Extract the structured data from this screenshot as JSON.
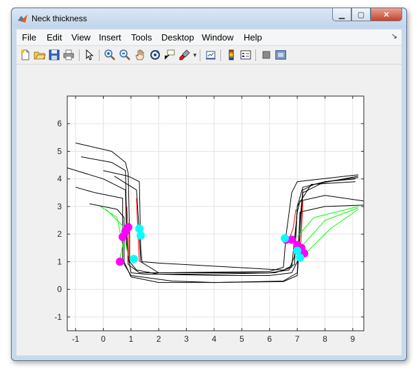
{
  "window": {
    "title": "Neck thickness"
  },
  "menu": {
    "items": [
      "File",
      "Edit",
      "View",
      "Insert",
      "Tools",
      "Desktop",
      "Window",
      "Help"
    ]
  },
  "toolbar": {
    "tools": [
      "new-figure",
      "open-file",
      "save",
      "print",
      "edit-plot",
      "zoom-in",
      "zoom-out",
      "pan",
      "rotate-3d",
      "data-cursor",
      "brush",
      "link-plot",
      "colorbar",
      "legend",
      "hide-plot-tools",
      "show-plot-tools"
    ]
  },
  "chart_data": {
    "type": "line",
    "title": "",
    "xlabel": "",
    "ylabel": "",
    "xlim": [
      -1.3,
      9.4
    ],
    "ylim": [
      -1.5,
      7
    ],
    "xticks": [
      -1,
      0,
      1,
      2,
      3,
      4,
      5,
      6,
      7,
      8,
      9
    ],
    "yticks": [
      -1,
      0,
      1,
      2,
      3,
      4,
      5,
      6
    ],
    "grid": true,
    "colors": {
      "black": "#000000",
      "red": "#ff0000",
      "green": "#00ff00",
      "magenta": "#ff00ff",
      "cyan": "#00ffff"
    },
    "series": [
      {
        "color": "black",
        "points": [
          [
            -1.0,
            5.3
          ],
          [
            0.3,
            5.0
          ],
          [
            0.8,
            4.6
          ],
          [
            0.9,
            4.2
          ],
          [
            0.95,
            2.0
          ],
          [
            0.95,
            1.0
          ],
          [
            1.2,
            0.7
          ],
          [
            2.0,
            0.55
          ],
          [
            4.0,
            0.5
          ],
          [
            6.0,
            0.5
          ],
          [
            6.8,
            0.6
          ],
          [
            7.0,
            1.0
          ],
          [
            7.1,
            2.5
          ],
          [
            7.2,
            3.6
          ],
          [
            7.6,
            3.8
          ],
          [
            9.2,
            4.1
          ]
        ]
      },
      {
        "color": "black",
        "points": [
          [
            -0.8,
            4.8
          ],
          [
            0.3,
            4.6
          ],
          [
            0.8,
            4.3
          ],
          [
            0.85,
            2.0
          ],
          [
            0.9,
            0.9
          ],
          [
            1.3,
            0.6
          ],
          [
            3.0,
            0.6
          ],
          [
            6.0,
            0.6
          ],
          [
            6.7,
            0.7
          ],
          [
            6.9,
            1.2
          ],
          [
            7.0,
            3.0
          ],
          [
            7.2,
            3.7
          ],
          [
            8.0,
            3.9
          ],
          [
            9.2,
            4.05
          ]
        ]
      },
      {
        "color": "black",
        "points": [
          [
            -1.3,
            4.4
          ],
          [
            0.0,
            4.0
          ],
          [
            0.8,
            3.6
          ],
          [
            0.85,
            1.5
          ],
          [
            1.0,
            0.6
          ],
          [
            1.5,
            0.55
          ],
          [
            4.0,
            0.55
          ],
          [
            6.2,
            0.6
          ],
          [
            6.8,
            0.8
          ],
          [
            7.0,
            2.8
          ],
          [
            7.1,
            3.2
          ],
          [
            8.0,
            3.4
          ],
          [
            9.4,
            3.2
          ]
        ]
      },
      {
        "color": "black",
        "points": [
          [
            -1.0,
            3.7
          ],
          [
            -0.3,
            3.5
          ],
          [
            0.7,
            3.3
          ],
          [
            0.7,
            1.0
          ],
          [
            1.0,
            0.5
          ],
          [
            2.5,
            0.3
          ],
          [
            4.0,
            0.25
          ],
          [
            6.5,
            0.3
          ],
          [
            7.0,
            0.6
          ],
          [
            7.1,
            2.8
          ],
          [
            8.0,
            3.0
          ],
          [
            9.4,
            3.05
          ]
        ]
      },
      {
        "color": "black",
        "points": [
          [
            -0.5,
            3.1
          ],
          [
            0.5,
            2.9
          ],
          [
            0.75,
            2.6
          ],
          [
            0.75,
            1.0
          ],
          [
            1.0,
            0.45
          ],
          [
            2.0,
            0.25
          ],
          [
            4.0,
            0.25
          ],
          [
            6.5,
            0.28
          ],
          [
            7.0,
            0.5
          ],
          [
            7.2,
            3.5
          ],
          [
            8.0,
            3.9
          ],
          [
            9.1,
            4.0
          ]
        ]
      },
      {
        "color": "black",
        "points": [
          [
            0.0,
            4.3
          ],
          [
            0.9,
            4.1
          ],
          [
            1.3,
            3.9
          ],
          [
            1.35,
            1.5
          ],
          [
            1.4,
            1.0
          ],
          [
            2.0,
            0.95
          ],
          [
            6.5,
            0.7
          ],
          [
            6.9,
            0.9
          ],
          [
            7.0,
            3.0
          ],
          [
            7.5,
            3.8
          ],
          [
            9.1,
            3.9
          ]
        ]
      },
      {
        "color": "black",
        "points": [
          [
            0.4,
            4.1
          ],
          [
            1.2,
            3.6
          ],
          [
            1.3,
            2.0
          ],
          [
            1.35,
            1.0
          ],
          [
            2.0,
            0.6
          ],
          [
            6.0,
            0.65
          ],
          [
            6.5,
            0.8
          ],
          [
            6.6,
            2.0
          ],
          [
            6.8,
            3.5
          ],
          [
            7.0,
            3.9
          ],
          [
            9.2,
            4.15
          ]
        ]
      },
      {
        "color": "red",
        "points": [
          [
            0.85,
            3.0
          ],
          [
            0.9,
            2.0
          ],
          [
            0.92,
            1.0
          ]
        ]
      },
      {
        "color": "red",
        "points": [
          [
            1.2,
            3.3
          ],
          [
            1.25,
            2.0
          ],
          [
            1.3,
            1.0
          ]
        ]
      },
      {
        "color": "red",
        "points": [
          [
            6.95,
            2.9
          ],
          [
            6.85,
            2.2
          ],
          [
            6.7,
            1.8
          ]
        ]
      },
      {
        "color": "red",
        "points": [
          [
            7.2,
            3.2
          ],
          [
            7.15,
            2.0
          ],
          [
            7.1,
            1.4
          ]
        ]
      },
      {
        "color": "green",
        "points": [
          [
            -0.1,
            3.0
          ],
          [
            0.5,
            2.6
          ],
          [
            0.7,
            1.6
          ],
          [
            0.6,
            1.1
          ]
        ]
      },
      {
        "color": "green",
        "points": [
          [
            0.1,
            2.9
          ],
          [
            0.7,
            2.3
          ],
          [
            0.9,
            1.2
          ]
        ]
      },
      {
        "color": "green",
        "points": [
          [
            7.0,
            1.9
          ],
          [
            7.6,
            2.6
          ],
          [
            9.2,
            3.0
          ]
        ]
      },
      {
        "color": "green",
        "points": [
          [
            7.2,
            1.6
          ],
          [
            8.0,
            2.5
          ],
          [
            9.2,
            2.95
          ]
        ]
      },
      {
        "color": "green",
        "points": [
          [
            7.3,
            1.3
          ],
          [
            8.2,
            2.2
          ],
          [
            9.2,
            2.9
          ]
        ]
      }
    ],
    "markers": [
      {
        "color": "magenta",
        "points": [
          [
            0.7,
            1.9
          ],
          [
            0.8,
            2.1
          ],
          [
            0.9,
            2.25
          ],
          [
            0.6,
            1.0
          ],
          [
            6.6,
            1.8
          ],
          [
            6.8,
            1.8
          ],
          [
            7.0,
            1.6
          ],
          [
            7.15,
            1.5
          ],
          [
            7.25,
            1.3
          ]
        ]
      },
      {
        "color": "cyan",
        "points": [
          [
            1.3,
            2.2
          ],
          [
            1.35,
            1.95
          ],
          [
            1.1,
            1.1
          ],
          [
            6.55,
            1.85
          ],
          [
            7.0,
            1.4
          ],
          [
            7.1,
            1.15
          ]
        ]
      }
    ]
  }
}
